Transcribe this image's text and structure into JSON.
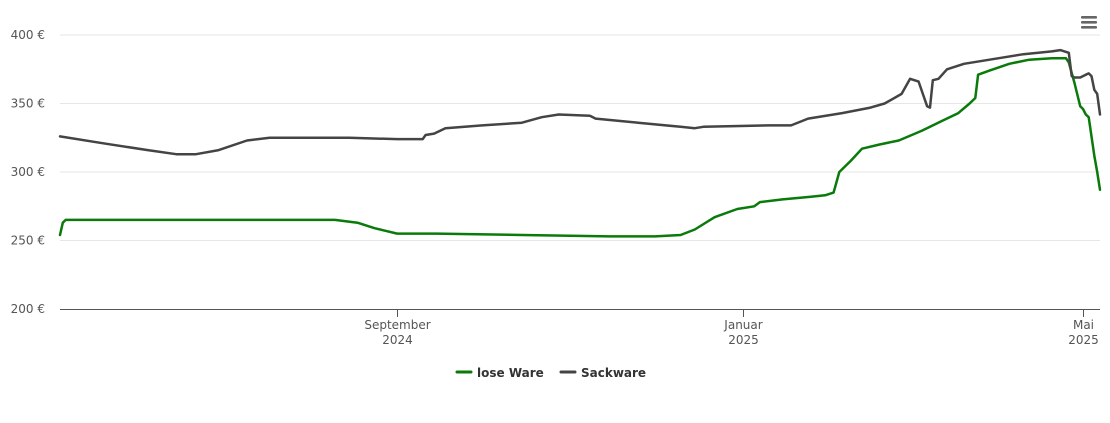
{
  "menu_icon": "hamburger-menu-icon",
  "chart_data": {
    "type": "line",
    "title": "",
    "xlabel": "",
    "ylabel": "",
    "ylim": [
      200,
      400
    ],
    "yticks": [
      {
        "value": 200,
        "label": "200 €"
      },
      {
        "value": 250,
        "label": "250 €"
      },
      {
        "value": 300,
        "label": "300 €"
      },
      {
        "value": 350,
        "label": "350 €"
      },
      {
        "value": 400,
        "label": "400 €"
      }
    ],
    "xlim": [
      "2024-05-05",
      "2025-05-07"
    ],
    "xticks": [
      {
        "date": "2024-09-01",
        "line1": "September",
        "line2": "2024"
      },
      {
        "date": "2025-01-01",
        "line1": "Januar",
        "line2": "2025"
      },
      {
        "date": "2025-05-01",
        "line1": "Mai",
        "line2": "2025"
      }
    ],
    "grid": true,
    "legend_position": "bottom-center",
    "series": [
      {
        "name": "lose Ware",
        "color": "#0a7a0a",
        "points": [
          [
            "2024-05-05",
            254
          ],
          [
            "2024-05-06",
            263
          ],
          [
            "2024-05-07",
            265
          ],
          [
            "2024-06-15",
            265
          ],
          [
            "2024-07-15",
            265
          ],
          [
            "2024-08-10",
            265
          ],
          [
            "2024-08-18",
            263
          ],
          [
            "2024-08-24",
            259
          ],
          [
            "2024-09-01",
            255
          ],
          [
            "2024-09-15",
            255
          ],
          [
            "2024-10-15",
            254
          ],
          [
            "2024-11-15",
            253
          ],
          [
            "2024-12-01",
            253
          ],
          [
            "2024-12-10",
            254
          ],
          [
            "2024-12-15",
            258
          ],
          [
            "2024-12-22",
            267
          ],
          [
            "2024-12-30",
            273
          ],
          [
            "2025-01-05",
            275
          ],
          [
            "2025-01-07",
            278
          ],
          [
            "2025-01-15",
            280
          ],
          [
            "2025-01-25",
            282
          ],
          [
            "2025-01-30",
            283
          ],
          [
            "2025-02-02",
            285
          ],
          [
            "2025-02-04",
            300
          ],
          [
            "2025-02-08",
            308
          ],
          [
            "2025-02-12",
            317
          ],
          [
            "2025-02-18",
            320
          ],
          [
            "2025-02-25",
            323
          ],
          [
            "2025-03-05",
            330
          ],
          [
            "2025-03-12",
            337
          ],
          [
            "2025-03-18",
            343
          ],
          [
            "2025-03-22",
            350
          ],
          [
            "2025-03-24",
            354
          ],
          [
            "2025-03-25",
            371
          ],
          [
            "2025-03-29",
            374
          ],
          [
            "2025-04-05",
            379
          ],
          [
            "2025-04-12",
            382
          ],
          [
            "2025-04-20",
            383
          ],
          [
            "2025-04-25",
            383
          ],
          [
            "2025-04-26",
            380
          ],
          [
            "2025-04-28",
            365
          ],
          [
            "2025-04-30",
            348
          ],
          [
            "2025-05-01",
            346
          ],
          [
            "2025-05-02",
            342
          ],
          [
            "2025-05-03",
            340
          ],
          [
            "2025-05-05",
            312
          ],
          [
            "2025-05-06",
            300
          ],
          [
            "2025-05-07",
            287
          ]
        ]
      },
      {
        "name": "Sackware",
        "color": "#444444",
        "points": [
          [
            "2024-05-05",
            326
          ],
          [
            "2024-05-20",
            321
          ],
          [
            "2024-06-05",
            316
          ],
          [
            "2024-06-15",
            313
          ],
          [
            "2024-06-22",
            313
          ],
          [
            "2024-06-30",
            316
          ],
          [
            "2024-07-10",
            323
          ],
          [
            "2024-07-18",
            325
          ],
          [
            "2024-08-15",
            325
          ],
          [
            "2024-09-01",
            324
          ],
          [
            "2024-09-10",
            324
          ],
          [
            "2024-09-11",
            327
          ],
          [
            "2024-09-14",
            328
          ],
          [
            "2024-09-18",
            332
          ],
          [
            "2024-10-01",
            334
          ],
          [
            "2024-10-15",
            336
          ],
          [
            "2024-10-22",
            340
          ],
          [
            "2024-10-28",
            342
          ],
          [
            "2024-11-08",
            341
          ],
          [
            "2024-11-10",
            339
          ],
          [
            "2024-11-25",
            336
          ],
          [
            "2024-12-10",
            333
          ],
          [
            "2024-12-15",
            332
          ],
          [
            "2024-12-18",
            333
          ],
          [
            "2025-01-10",
            334
          ],
          [
            "2025-01-18",
            334
          ],
          [
            "2025-01-24",
            339
          ],
          [
            "2025-02-05",
            343
          ],
          [
            "2025-02-15",
            347
          ],
          [
            "2025-02-20",
            350
          ],
          [
            "2025-02-26",
            357
          ],
          [
            "2025-03-01",
            368
          ],
          [
            "2025-03-04",
            366
          ],
          [
            "2025-03-07",
            348
          ],
          [
            "2025-03-08",
            347
          ],
          [
            "2025-03-09",
            367
          ],
          [
            "2025-03-11",
            368
          ],
          [
            "2025-03-14",
            375
          ],
          [
            "2025-03-20",
            379
          ],
          [
            "2025-04-01",
            383
          ],
          [
            "2025-04-10",
            386
          ],
          [
            "2025-04-20",
            388
          ],
          [
            "2025-04-23",
            389
          ],
          [
            "2025-04-26",
            387
          ],
          [
            "2025-04-27",
            370
          ],
          [
            "2025-04-28",
            369
          ],
          [
            "2025-04-30",
            369
          ],
          [
            "2025-05-02",
            371
          ],
          [
            "2025-05-03",
            372
          ],
          [
            "2025-05-04",
            370
          ],
          [
            "2025-05-05",
            360
          ],
          [
            "2025-05-06",
            357
          ],
          [
            "2025-05-07",
            342
          ]
        ]
      }
    ]
  }
}
